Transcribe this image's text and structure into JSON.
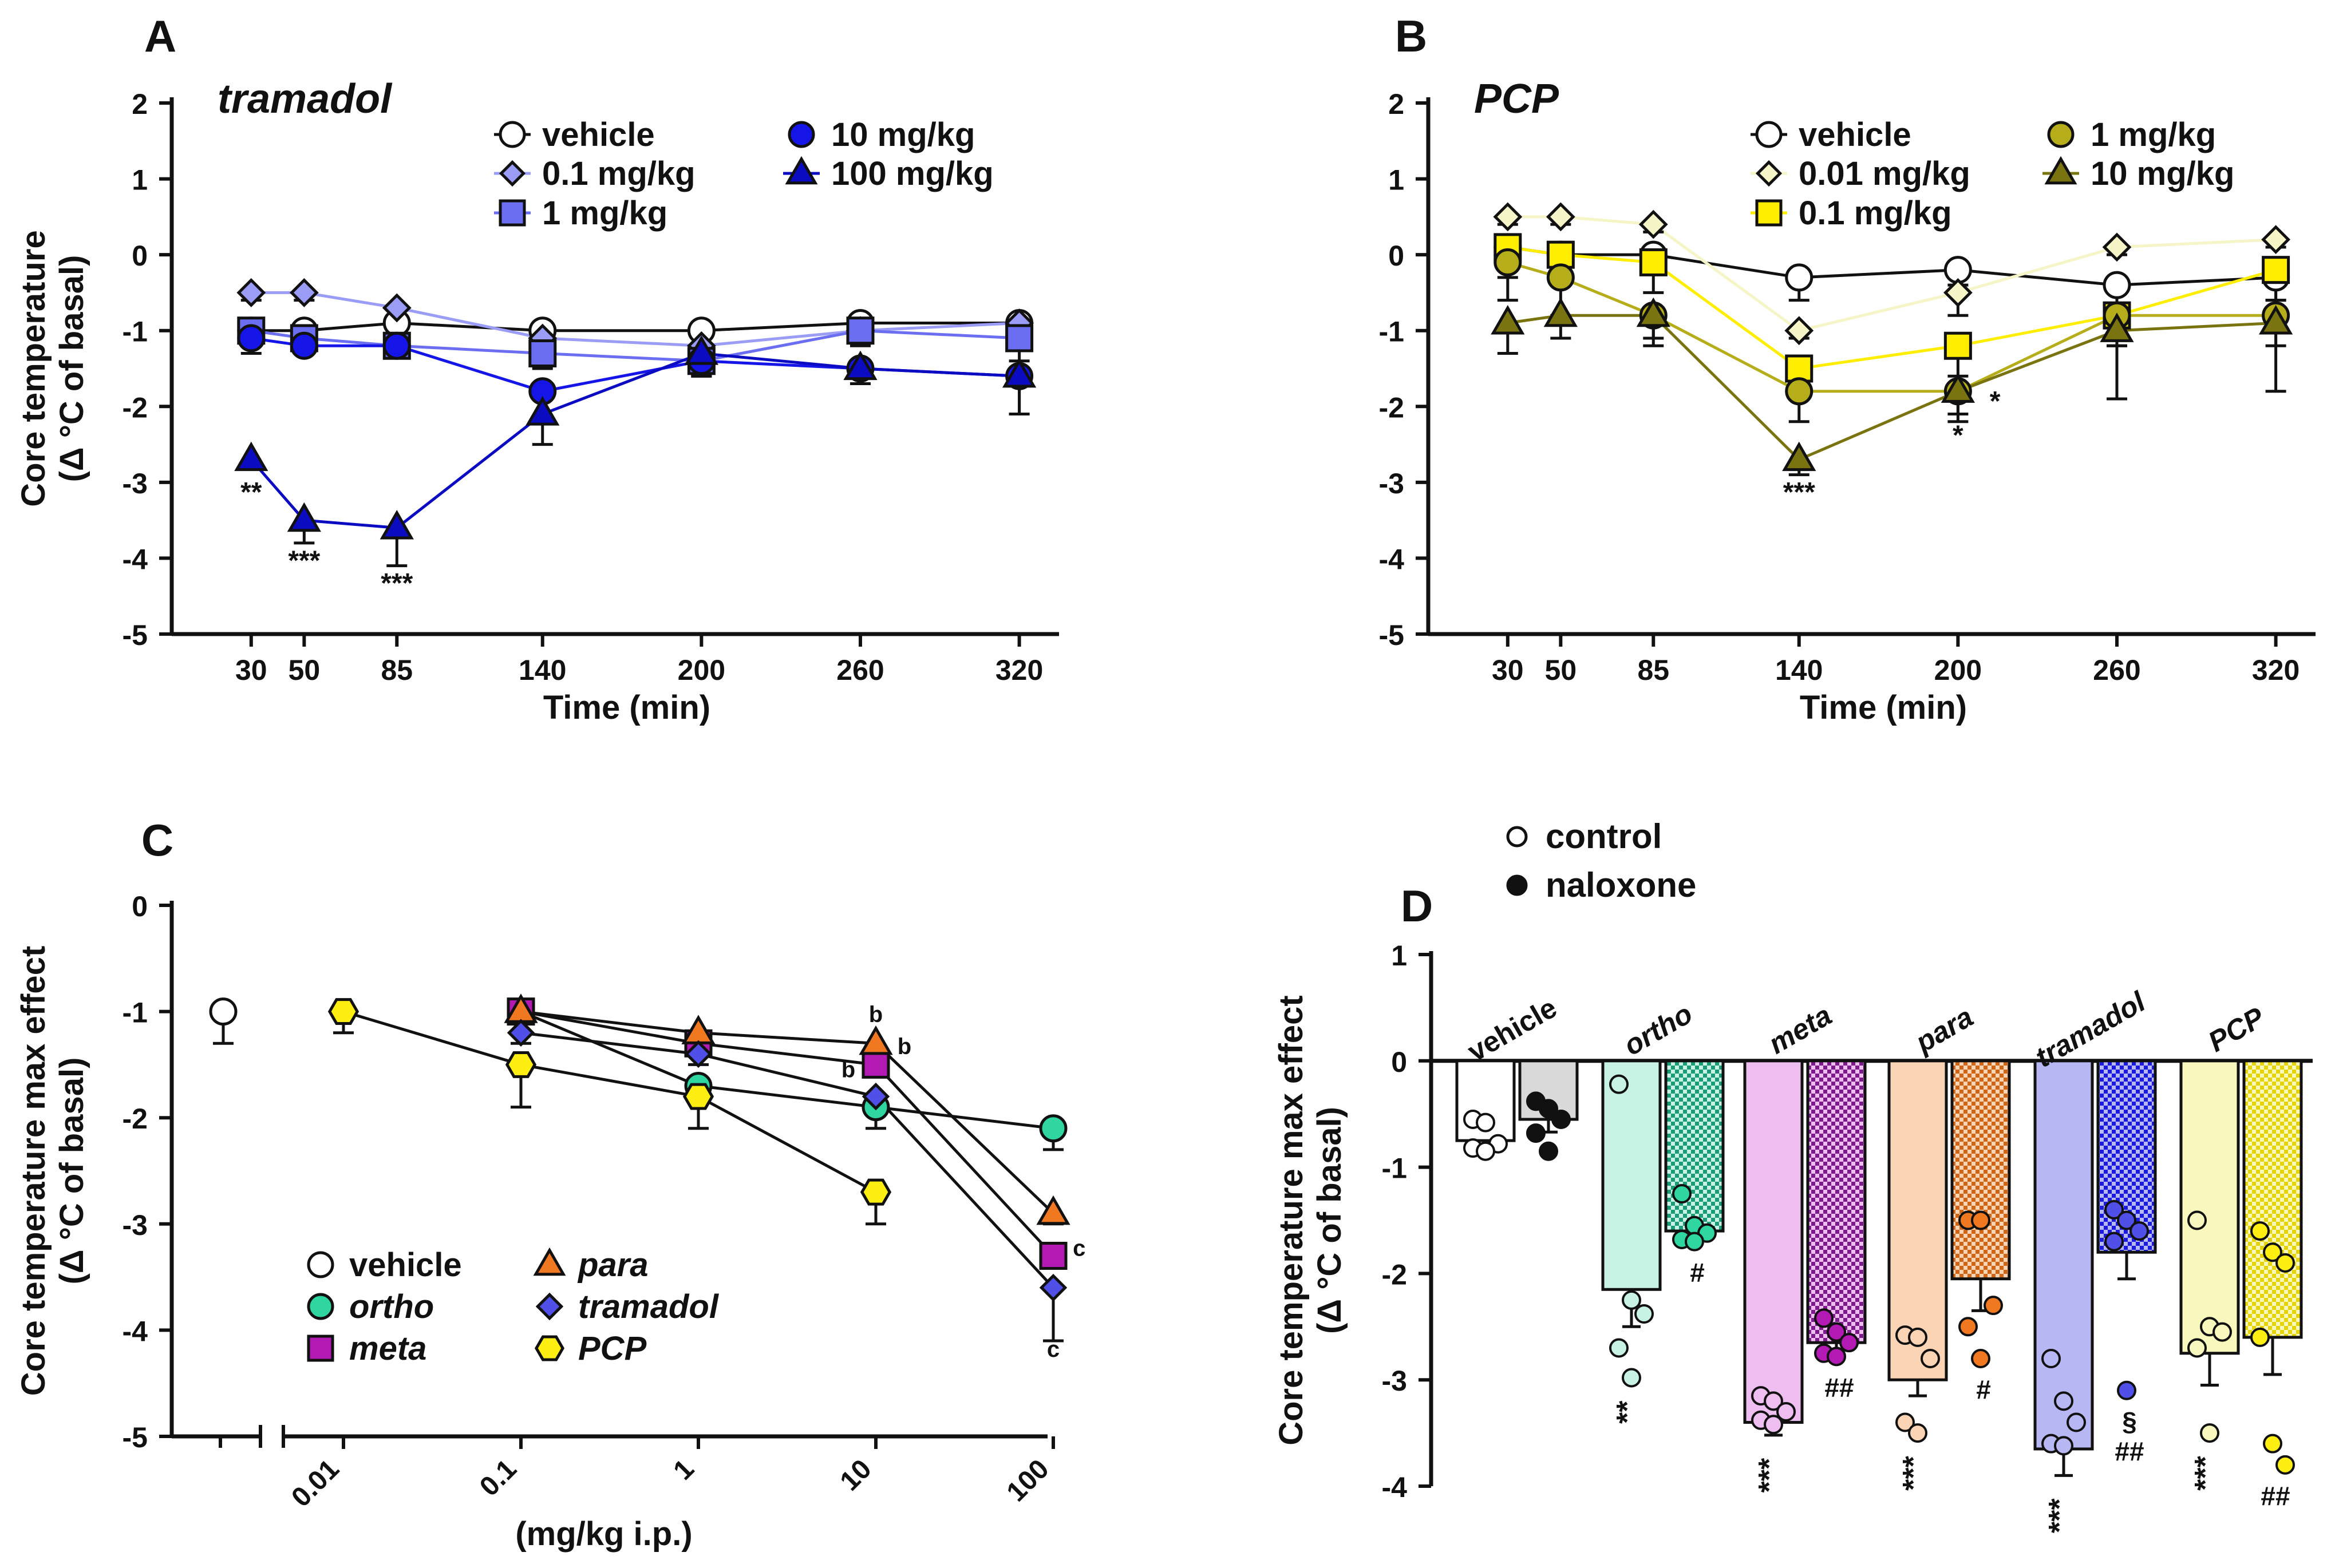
{
  "colors": {
    "vehicle": "#ffffff",
    "t01": "#9a9cf6",
    "t1": "#6b6ef0",
    "t10": "#1515e8",
    "t100": "#0b0bc2",
    "p001": "#f6f5c8",
    "p01": "#ffee00",
    "p1": "#b5ae1a",
    "p10": "#7a7410",
    "ortho": "#2fd6a2",
    "meta": "#b31ab3",
    "para": "#f07820",
    "tramadol": "#5050e8",
    "pcp": "#ffee11",
    "ortho_light": "#c7f2e4",
    "meta_light": "#eebef0",
    "para_light": "#fbd3b5",
    "tramadol_light": "#b7b7f3",
    "pcp_light": "#f7f7be",
    "ortho_dark": "#1a9c78",
    "meta_dark": "#7d1a8c",
    "para_dark": "#d06515",
    "tramadol_dark": "#1a1ae0",
    "pcp_dark": "#e6d400"
  },
  "chart_data": [
    {
      "panel": "A",
      "type": "line",
      "title": "tramadol",
      "xlabel": "Time (min)",
      "ylabel": [
        "Core temperature",
        "(Δ °C of basal)"
      ],
      "x": [
        30,
        50,
        85,
        140,
        200,
        260,
        320
      ],
      "xlim": [
        0,
        335
      ],
      "ylim": [
        -5,
        2
      ],
      "yticks": [
        -5,
        -4,
        -3,
        -2,
        -1,
        0,
        1,
        2
      ],
      "series": [
        {
          "name": "vehicle",
          "marker": "circle",
          "color": "vehicle",
          "values": [
            -1.0,
            -1.0,
            -0.9,
            -1.0,
            -1.0,
            -0.9,
            -0.9
          ],
          "err": [
            0.05,
            0.05,
            0.05,
            0.05,
            0.05,
            0.05,
            0.05
          ]
        },
        {
          "name": "0.1 mg/kg",
          "marker": "diamond",
          "color": "t01",
          "values": [
            -0.5,
            -0.5,
            -0.7,
            -1.1,
            -1.2,
            -1.0,
            -0.9
          ],
          "err": [
            0.1,
            0.1,
            0.1,
            0.1,
            0.1,
            0.1,
            0.1
          ]
        },
        {
          "name": "1 mg/kg",
          "marker": "square",
          "color": "t1",
          "values": [
            -1.0,
            -1.1,
            -1.2,
            -1.3,
            -1.4,
            -1.0,
            -1.1
          ],
          "err": [
            0.3,
            0.1,
            0.1,
            0.2,
            0.2,
            0.2,
            0.3
          ]
        },
        {
          "name": "10 mg/kg",
          "marker": "circle",
          "color": "t10",
          "values": [
            -1.1,
            -1.2,
            -1.2,
            -1.8,
            -1.4,
            -1.5,
            -1.6
          ],
          "err": [
            0.1,
            0.1,
            0.1,
            0.1,
            0.2,
            0.2,
            0.5
          ]
        },
        {
          "name": "100 mg/kg",
          "marker": "triangle",
          "color": "t100",
          "values": [
            -2.7,
            -3.5,
            -3.6,
            -2.1,
            -1.3,
            -1.5,
            -1.6
          ],
          "err": [
            0.1,
            0.3,
            0.5,
            0.4,
            0.3,
            0.2,
            0.5
          ]
        }
      ],
      "annotations": [
        {
          "text": "**",
          "x": 30,
          "y": -3.25
        },
        {
          "text": "***",
          "x": 50,
          "y": -4.15
        },
        {
          "text": "***",
          "x": 85,
          "y": -4.45
        }
      ]
    },
    {
      "panel": "B",
      "type": "line",
      "title": "PCP",
      "xlabel": "Time (min)",
      "ylabel": [],
      "x": [
        30,
        50,
        85,
        140,
        200,
        260,
        320
      ],
      "xlim": [
        0,
        335
      ],
      "ylim": [
        -5,
        2
      ],
      "yticks": [
        -5,
        -4,
        -3,
        -2,
        -1,
        0,
        1,
        2
      ],
      "series": [
        {
          "name": "vehicle",
          "marker": "circle",
          "color": "vehicle",
          "values": [
            0.1,
            0.0,
            0.0,
            -0.3,
            -0.2,
            -0.4,
            -0.3
          ],
          "err": [
            0.3,
            0.3,
            0.2,
            0.3,
            0.2,
            0.3,
            0.3
          ]
        },
        {
          "name": "0.01 mg/kg",
          "marker": "diamond",
          "color": "p001",
          "values": [
            0.5,
            0.5,
            0.4,
            -1.0,
            -0.5,
            0.1,
            0.2
          ],
          "err": [
            0.1,
            0.1,
            0.1,
            0.1,
            0.3,
            0.1,
            0.1
          ]
        },
        {
          "name": "0.1 mg/kg",
          "marker": "square",
          "color": "p01",
          "values": [
            0.1,
            0.0,
            -0.1,
            -1.5,
            -1.2,
            -0.8,
            -0.2
          ],
          "err": [
            0.4,
            0.4,
            0.4,
            0.4,
            0.4,
            0.4,
            0.4
          ]
        },
        {
          "name": "1 mg/kg",
          "marker": "circle",
          "color": "p1",
          "values": [
            -0.1,
            -0.3,
            -0.8,
            -1.8,
            -1.8,
            -0.8,
            -0.8
          ],
          "err": [
            0.5,
            0.5,
            0.4,
            0.4,
            0.4,
            0.4,
            0.4
          ]
        },
        {
          "name": "10 mg/kg",
          "marker": "triangle",
          "color": "p10",
          "values": [
            -0.9,
            -0.8,
            -0.8,
            -2.7,
            -1.8,
            -1.0,
            -0.9
          ],
          "err": [
            0.4,
            0.3,
            0.3,
            0.2,
            0.3,
            0.9,
            0.9
          ]
        }
      ],
      "annotations": [
        {
          "text": "***",
          "x": 140,
          "y": -3.25
        },
        {
          "text": "*",
          "x": 214,
          "y": -2.05
        },
        {
          "text": "*",
          "x": 200,
          "y": -2.5
        }
      ]
    },
    {
      "panel": "C",
      "type": "line",
      "xscale": "log",
      "xlabel": "(mg/kg i.p.)",
      "ylabel": [
        "Core temperature max effect",
        "(Δ °C of basal)"
      ],
      "xticks": [
        "0.01",
        "0.1",
        "1",
        "10",
        "100"
      ],
      "ylim": [
        -5,
        0
      ],
      "yticks": [
        -5,
        -4,
        -3,
        -2,
        -1,
        0
      ],
      "vehicle_point": {
        "name": "vehicle",
        "value": -1.0,
        "err": 0.3
      },
      "series": [
        {
          "name": "ortho",
          "marker": "circle",
          "color": "ortho",
          "x": [
            0.1,
            1,
            10,
            100
          ],
          "values": [
            -1.0,
            -1.7,
            -1.9,
            -2.1
          ],
          "err": [
            0.1,
            0.1,
            0.2,
            0.2
          ]
        },
        {
          "name": "meta",
          "marker": "square",
          "color": "meta",
          "x": [
            0.1,
            1,
            10,
            100
          ],
          "values": [
            -1.0,
            -1.3,
            -1.5,
            -3.3
          ],
          "err": [
            0.1,
            0.1,
            0.1,
            0.1
          ]
        },
        {
          "name": "para",
          "marker": "triangle",
          "color": "para",
          "x": [
            0.1,
            1,
            10,
            100
          ],
          "values": [
            -1.0,
            -1.2,
            -1.3,
            -2.9
          ],
          "err": [
            0.1,
            0.1,
            0.1,
            0.1
          ]
        },
        {
          "name": "tramadol",
          "marker": "diamond",
          "color": "tramadol",
          "x": [
            0.1,
            1,
            10,
            100
          ],
          "values": [
            -1.2,
            -1.4,
            -1.8,
            -3.6
          ],
          "err": [
            0.1,
            0.1,
            0.1,
            0.5
          ]
        },
        {
          "name": "PCP",
          "marker": "hexagon",
          "color": "pcp",
          "x": [
            0.01,
            0.1,
            1,
            10
          ],
          "values": [
            -1.0,
            -1.5,
            -1.8,
            -2.7
          ],
          "err": [
            0.2,
            0.4,
            0.3,
            0.3
          ]
        }
      ],
      "annotations": [
        {
          "text": "b",
          "xv": 10,
          "y": -1.1
        },
        {
          "text": "b",
          "xv": 14.5,
          "y": -1.4
        },
        {
          "text": "b",
          "xv": 7.0,
          "y": -1.62
        },
        {
          "text": "c",
          "xv": 140,
          "y": -3.3
        },
        {
          "text": "c",
          "xv": 100,
          "y": -4.25
        }
      ]
    },
    {
      "panel": "D",
      "type": "bar",
      "ylabel": [
        "Core temperature max effect",
        "(Δ °C of basal)"
      ],
      "ylim": [
        -4,
        1
      ],
      "yticks": [
        -4,
        -3,
        -2,
        -1,
        0,
        1
      ],
      "legend": [
        "control",
        "naloxone"
      ],
      "groups": [
        {
          "name": "vehicle",
          "key": "vehicle",
          "control": -0.75,
          "control_err": 0.05,
          "naloxone": -0.55,
          "naloxone_err": 0.12,
          "control_pts": [
            -0.55,
            -0.58,
            -0.78,
            -0.82,
            -0.85
          ],
          "naloxone_pts": [
            -0.38,
            -0.45,
            -0.55,
            -0.68,
            -0.85
          ],
          "control_sig": "",
          "naloxone_sig": ""
        },
        {
          "name": "ortho",
          "key": "ortho",
          "control": -2.15,
          "control_err": 0.35,
          "naloxone": -1.6,
          "naloxone_err": 0.1,
          "control_pts": [
            -0.22,
            -2.25,
            -2.38,
            -2.7,
            -2.98
          ],
          "naloxone_pts": [
            -1.25,
            -1.55,
            -1.62,
            -1.68,
            -1.7
          ],
          "control_sig": "**",
          "naloxone_sig": "#"
        },
        {
          "name": "meta",
          "key": "meta",
          "control": -3.4,
          "control_err": 0.12,
          "naloxone": -2.65,
          "naloxone_err": 0.12,
          "control_pts": [
            -3.15,
            -3.2,
            -3.3,
            -3.38,
            -3.42
          ],
          "naloxone_pts": [
            -2.42,
            -2.55,
            -2.65,
            -2.75,
            -2.78
          ],
          "control_sig": "***",
          "naloxone_sig": "##"
        },
        {
          "name": "para",
          "key": "para",
          "control": -3.0,
          "control_err": 0.15,
          "naloxone": -2.05,
          "naloxone_err": 0.3,
          "control_pts": [
            -2.58,
            -2.6,
            -2.8,
            -3.4,
            -3.5
          ],
          "naloxone_pts": [
            -1.5,
            -1.5,
            -2.3,
            -2.5,
            -2.8
          ],
          "control_sig": "***",
          "naloxone_sig": "#"
        },
        {
          "name": "tramadol",
          "key": "tramadol",
          "control": -3.65,
          "control_err": 0.25,
          "naloxone": -1.8,
          "naloxone_err": 0.25,
          "control_pts": [
            -2.8,
            -3.2,
            -3.4,
            -3.6,
            -3.62
          ],
          "naloxone_pts": [
            -1.4,
            -1.5,
            -1.6,
            -1.7,
            -3.1
          ],
          "control_sig": "***",
          "naloxone_sig": "§\n##"
        },
        {
          "name": "PCP",
          "key": "pcp",
          "control": -2.75,
          "control_err": 0.3,
          "naloxone": -2.6,
          "naloxone_err": 0.35,
          "control_pts": [
            -1.5,
            -2.5,
            -2.55,
            -2.7,
            -3.5
          ],
          "naloxone_pts": [
            -1.6,
            -1.8,
            -1.9,
            -2.6,
            -3.6,
            -3.8
          ],
          "control_sig": "***",
          "naloxone_sig": "##"
        }
      ]
    }
  ],
  "panels": {
    "A": {
      "letter": "A"
    },
    "B": {
      "letter": "B"
    },
    "C": {
      "letter": "C"
    },
    "D": {
      "letter": "D"
    }
  },
  "legends": {
    "A": [
      "vehicle",
      "0.1 mg/kg",
      "1 mg/kg",
      "10 mg/kg",
      "100 mg/kg"
    ],
    "B": [
      "vehicle",
      "0.01 mg/kg",
      "0.1 mg/kg",
      "1 mg/kg",
      "10 mg/kg"
    ],
    "C": [
      "vehicle",
      "ortho",
      "meta",
      "para",
      "tramadol",
      "PCP"
    ]
  }
}
